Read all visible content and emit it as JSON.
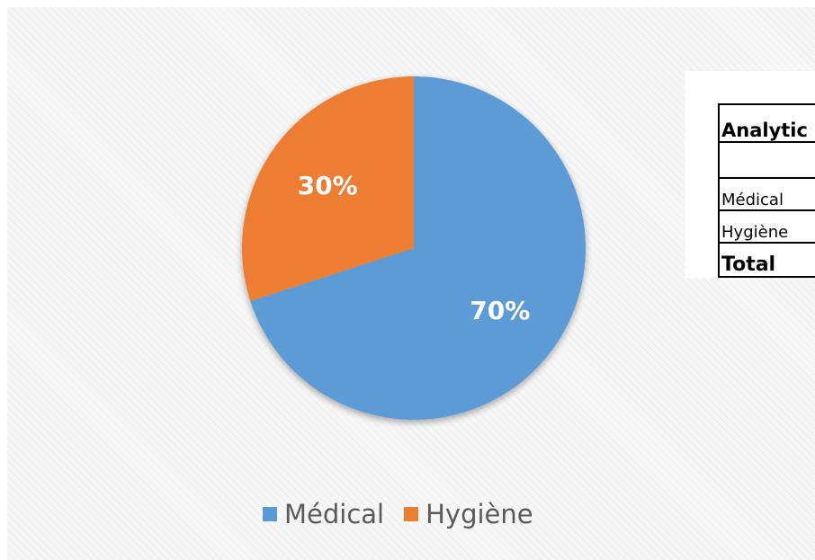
{
  "chart_data": {
    "type": "pie",
    "title": "",
    "categories": [
      "Médical",
      "Hygiène"
    ],
    "values": [
      70,
      30
    ],
    "labels": [
      "70%",
      "30%"
    ],
    "colors": [
      "#5b9bd5",
      "#ed7d31"
    ],
    "legend_position": "bottom"
  },
  "table": {
    "header": "Analytic",
    "rows": [
      "Médical",
      "Hygiène"
    ],
    "total_label": "Total"
  }
}
